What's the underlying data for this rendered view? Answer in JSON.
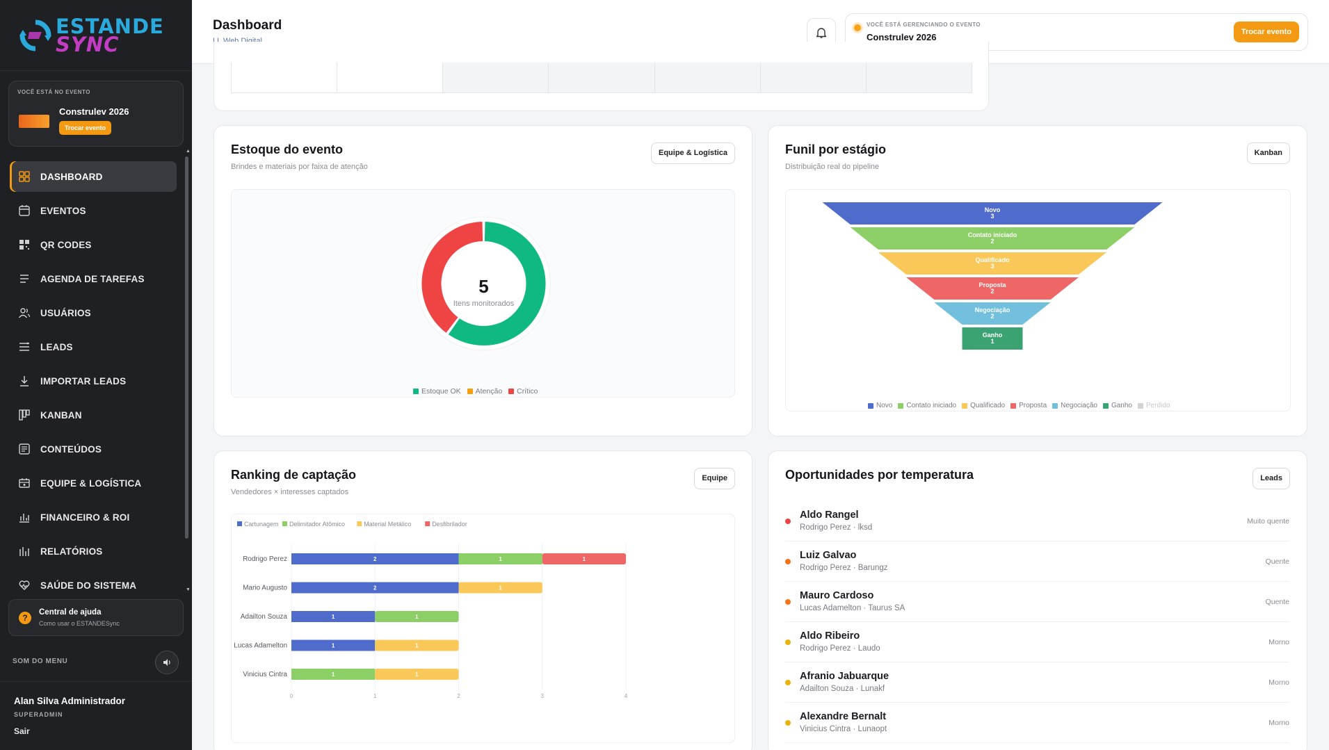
{
  "brand": {
    "line1": "ESTANDE",
    "line2": "SYNC"
  },
  "sidebar": {
    "event_caption": "VOCÊ ESTÁ NO EVENTO",
    "event_name": "Construlev 2026",
    "swap_label": "Trocar evento",
    "items": [
      {
        "label": "DASHBOARD",
        "icon": "grid-icon"
      },
      {
        "label": "EVENTOS",
        "icon": "calendar-icon"
      },
      {
        "label": "QR CODES",
        "icon": "qrcode-icon"
      },
      {
        "label": "AGENDA DE TAREFAS",
        "icon": "list-icon"
      },
      {
        "label": "USUÁRIOS",
        "icon": "users-icon"
      },
      {
        "label": "LEADS",
        "icon": "leads-icon"
      },
      {
        "label": "IMPORTAR LEADS",
        "icon": "download-icon"
      },
      {
        "label": "KANBAN",
        "icon": "kanban-icon"
      },
      {
        "label": "CONTEÚDOS",
        "icon": "document-icon"
      },
      {
        "label": "EQUIPE & LOGÍSTICA",
        "icon": "logistics-icon"
      },
      {
        "label": "FINANCEIRO & ROI",
        "icon": "bar-chart-icon"
      },
      {
        "label": "RELATÓRIOS",
        "icon": "report-icon"
      },
      {
        "label": "SAÚDE DO SISTEMA",
        "icon": "heart-icon"
      }
    ],
    "help_title": "Central de ajuda",
    "help_sub": "Como usar o ESTANDESync",
    "sound_label": "SOM DO MENU",
    "user_name": "Alan Silva Administrador",
    "user_role": "SUPERADMIN",
    "logout": "Sair"
  },
  "header": {
    "title": "Dashboard",
    "subtitle": "LL Web Digital",
    "managing_caption": "VOCÊ ESTÁ GERENCIANDO O EVENTO",
    "event_name": "Construlev 2026",
    "swap_label": "Trocar evento"
  },
  "stock": {
    "title": "Estoque do evento",
    "subtitle": "Brindes e materiais por faixa de atenção",
    "button": "Equipe & Logística",
    "center_value": "5",
    "center_label": "Itens monitorados",
    "legend": [
      "Estoque OK",
      "Atenção",
      "Crítico"
    ],
    "colors": {
      "ok": "#10b981",
      "attention": "#f59e0b",
      "critical": "#ef4444"
    }
  },
  "funnel": {
    "title": "Funil por estágio",
    "subtitle": "Distribuição real do pipeline",
    "button": "Kanban",
    "stages": [
      {
        "name": "Novo",
        "count": "3",
        "color": "#4f6bcb"
      },
      {
        "name": "Contato iniciado",
        "count": "2",
        "color": "#8bcf66"
      },
      {
        "name": "Qualificado",
        "count": "3",
        "color": "#fac858"
      },
      {
        "name": "Proposta",
        "count": "2",
        "color": "#ee6666"
      },
      {
        "name": "Negociação",
        "count": "2",
        "color": "#73c0de"
      },
      {
        "name": "Ganho",
        "count": "1",
        "color": "#3ba272"
      }
    ],
    "legend": [
      "Novo",
      "Contato iniciado",
      "Qualificado",
      "Proposta",
      "Negociação",
      "Ganho",
      "Perdido"
    ]
  },
  "ranking": {
    "title": "Ranking de captação",
    "subtitle": "Vendedores × interesses captados",
    "button": "Equipe"
  },
  "opportunities": {
    "title": "Oportunidades por temperatura",
    "button": "Leads",
    "items": [
      {
        "name": "Aldo Rangel",
        "meta": "Rodrigo Perez · lksd",
        "temp": "Muito quente",
        "color": "#ef4444"
      },
      {
        "name": "Luiz Galvao",
        "meta": "Rodrigo Perez · Barungz",
        "temp": "Quente",
        "color": "#f97316"
      },
      {
        "name": "Mauro Cardoso",
        "meta": "Lucas Adamelton · Taurus SA",
        "temp": "Quente",
        "color": "#f97316"
      },
      {
        "name": "Aldo Ribeiro",
        "meta": "Rodrigo Perez · Laudo",
        "temp": "Morno",
        "color": "#eab308"
      },
      {
        "name": "Afranio Jabuarque",
        "meta": "Adailton Souza · Lunakf",
        "temp": "Morno",
        "color": "#eab308"
      },
      {
        "name": "Alexandre Bernalt",
        "meta": "Vinicius Cintra · Lunaopt",
        "temp": "Morno",
        "color": "#eab308"
      }
    ]
  },
  "chart_data": [
    {
      "type": "pie",
      "categories": [
        "Estoque OK",
        "Atenção",
        "Crítico"
      ],
      "values": [
        3,
        0,
        2
      ]
    },
    {
      "type": "bar",
      "orientation": "horizontal",
      "stacked": true,
      "categories": [
        "Rodrigo Perez",
        "Mario Augusto",
        "Adailton Souza",
        "Lucas Adamelton",
        "Vinicius Cintra"
      ],
      "series": [
        {
          "name": "Cartunagem",
          "color": "#4f6bcb",
          "values": [
            2,
            2,
            1,
            1,
            0
          ]
        },
        {
          "name": "Delimitador Atômico",
          "color": "#8bcf66",
          "values": [
            1,
            0,
            1,
            0,
            1
          ]
        },
        {
          "name": "Material Metálico",
          "color": "#fac858",
          "values": [
            0,
            1,
            0,
            1,
            1
          ]
        },
        {
          "name": "Desfibrilador",
          "color": "#ee6666",
          "values": [
            1,
            0,
            0,
            0,
            0
          ]
        }
      ],
      "xticks": [
        "0",
        "1",
        "2",
        "3",
        "4"
      ],
      "xlim": [
        0,
        4
      ]
    }
  ]
}
